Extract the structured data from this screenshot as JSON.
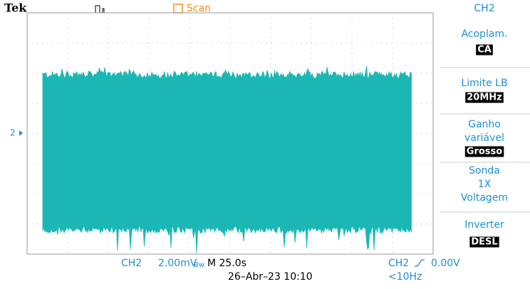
{
  "header": {
    "brand": "Tek",
    "mode": "Scan",
    "channel": "CH2"
  },
  "channel_marker": "2",
  "menu": [
    {
      "lines": [
        "Acoplam."
      ],
      "value": "CA"
    },
    {
      "lines": [
        "Limite LB"
      ],
      "value": "20MHz"
    },
    {
      "lines": [
        "Ganho",
        "variável"
      ],
      "value": "Grosso"
    },
    {
      "lines": [
        "Sonda",
        "1X",
        "Voltagem"
      ]
    },
    {
      "lines": [
        "Inverter"
      ],
      "value": "DESL"
    }
  ],
  "footer": {
    "channel": "CH2",
    "scale": "2.00mV",
    "bandwidth": "Bw",
    "timebase": "M 25.0s",
    "date": "26–Abr–23 10:10",
    "trigger_source": "CH2",
    "trigger_level": "0.00V",
    "trigger_freq": "<10Hz"
  }
}
